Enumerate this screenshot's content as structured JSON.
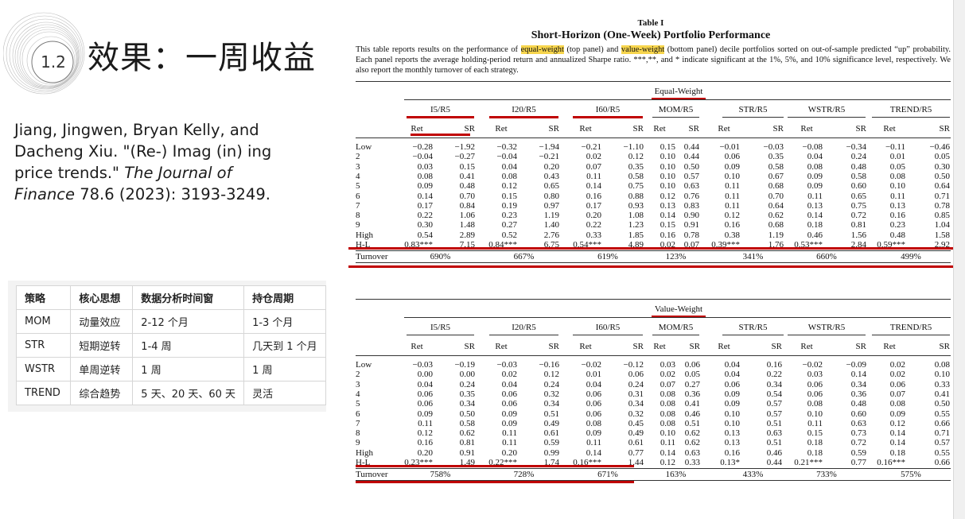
{
  "slide": {
    "number": "1.2",
    "title": "效果：一周收益",
    "citation_authors": "Jiang, Jingwen, Bryan Kelly, and Dacheng Xiu. \"(Re-) Imag (in) ing price trends.\"",
    "citation_journal": "The Journal of Finance",
    "citation_rest": " 78.6 (2023): 3193-3249."
  },
  "strategy_table": {
    "headers": [
      "策略",
      "核心思想",
      "数据分析时间窗",
      "持仓周期"
    ],
    "rows": [
      [
        "MOM",
        "动量效应",
        "2-12 个月",
        "1-3 个月"
      ],
      [
        "STR",
        "短期逆转",
        "1-4 周",
        "几天到 1 个月"
      ],
      [
        "WSTR",
        "单周逆转",
        "1 周",
        "1 周"
      ],
      [
        "TREND",
        "综合趋势",
        "5 天、20 天、60 天",
        "灵活"
      ]
    ]
  },
  "paper": {
    "table_label": "Table I",
    "table_title": "Short-Horizon (One-Week) Portfolio Performance",
    "desc_1": "This table reports results on the performance of ",
    "desc_hl1": "equal-weight",
    "desc_2": " (top panel) and ",
    "desc_hl2": "value-weight",
    "desc_3": " (bottom panel) decile portfolios sorted on out-of-sample predicted “up” probability. Each panel reports the average holding-period return and annualized Sharpe ratio. ***,**, and * indicate significant at the 1%, 5%, and 10% significance level, respectively. We also report the monthly turnover of each strategy.",
    "strategies": [
      "I5/R5",
      "I20/R5",
      "I60/R5",
      "MOM/R5",
      "STR/R5",
      "WSTR/R5",
      "TREND/R5"
    ],
    "sub_headers": [
      "Ret",
      "SR"
    ],
    "row_labels": [
      "Low",
      "2",
      "3",
      "4",
      "5",
      "6",
      "7",
      "8",
      "9",
      "High",
      "H-L"
    ],
    "turnover_label": "Turnover",
    "equal": {
      "title": "Equal-Weight",
      "rows": [
        [
          "−0.28",
          "−1.92",
          "−0.32",
          "−1.94",
          "−0.21",
          "−1.10",
          "0.15",
          "0.44",
          "−0.01",
          "−0.03",
          "−0.08",
          "−0.34",
          "−0.11",
          "−0.46"
        ],
        [
          "−0.04",
          "−0.27",
          "−0.04",
          "−0.21",
          "0.02",
          "0.12",
          "0.10",
          "0.44",
          "0.06",
          "0.35",
          "0.04",
          "0.24",
          "0.01",
          "0.05"
        ],
        [
          "0.03",
          "0.15",
          "0.04",
          "0.20",
          "0.07",
          "0.35",
          "0.10",
          "0.50",
          "0.09",
          "0.58",
          "0.08",
          "0.48",
          "0.05",
          "0.30"
        ],
        [
          "0.08",
          "0.41",
          "0.08",
          "0.43",
          "0.11",
          "0.58",
          "0.10",
          "0.57",
          "0.10",
          "0.67",
          "0.09",
          "0.58",
          "0.08",
          "0.50"
        ],
        [
          "0.09",
          "0.48",
          "0.12",
          "0.65",
          "0.14",
          "0.75",
          "0.10",
          "0.63",
          "0.11",
          "0.68",
          "0.09",
          "0.60",
          "0.10",
          "0.64"
        ],
        [
          "0.14",
          "0.70",
          "0.15",
          "0.80",
          "0.16",
          "0.88",
          "0.12",
          "0.76",
          "0.11",
          "0.70",
          "0.11",
          "0.65",
          "0.11",
          "0.71"
        ],
        [
          "0.17",
          "0.84",
          "0.19",
          "0.97",
          "0.17",
          "0.93",
          "0.13",
          "0.83",
          "0.11",
          "0.64",
          "0.13",
          "0.75",
          "0.13",
          "0.78"
        ],
        [
          "0.22",
          "1.06",
          "0.23",
          "1.19",
          "0.20",
          "1.08",
          "0.14",
          "0.90",
          "0.12",
          "0.62",
          "0.14",
          "0.72",
          "0.16",
          "0.85"
        ],
        [
          "0.30",
          "1.48",
          "0.27",
          "1.40",
          "0.22",
          "1.23",
          "0.15",
          "0.91",
          "0.16",
          "0.68",
          "0.18",
          "0.81",
          "0.23",
          "1.04"
        ],
        [
          "0.54",
          "2.89",
          "0.52",
          "2.76",
          "0.33",
          "1.85",
          "0.16",
          "0.78",
          "0.38",
          "1.19",
          "0.46",
          "1.56",
          "0.48",
          "1.58"
        ],
        [
          "0.83***",
          "7.15",
          "0.84***",
          "6.75",
          "0.54***",
          "4.89",
          "0.02",
          "0.07",
          "0.39***",
          "1.76",
          "0.53***",
          "2.84",
          "0.59***",
          "2.92"
        ]
      ],
      "turnover": [
        "690%",
        "667%",
        "619%",
        "123%",
        "341%",
        "660%",
        "499%"
      ]
    },
    "value": {
      "title": "Value-Weight",
      "rows": [
        [
          "−0.03",
          "−0.19",
          "−0.03",
          "−0.16",
          "−0.02",
          "−0.12",
          "0.03",
          "0.06",
          "0.04",
          "0.16",
          "−0.02",
          "−0.09",
          "0.02",
          "0.08"
        ],
        [
          "0.00",
          "0.00",
          "0.02",
          "0.12",
          "0.01",
          "0.06",
          "0.02",
          "0.05",
          "0.04",
          "0.22",
          "0.03",
          "0.14",
          "0.02",
          "0.10"
        ],
        [
          "0.04",
          "0.24",
          "0.04",
          "0.24",
          "0.04",
          "0.24",
          "0.07",
          "0.27",
          "0.06",
          "0.34",
          "0.06",
          "0.34",
          "0.06",
          "0.33"
        ],
        [
          "0.06",
          "0.35",
          "0.06",
          "0.32",
          "0.06",
          "0.31",
          "0.08",
          "0.36",
          "0.09",
          "0.54",
          "0.06",
          "0.36",
          "0.07",
          "0.41"
        ],
        [
          "0.06",
          "0.34",
          "0.06",
          "0.34",
          "0.06",
          "0.34",
          "0.08",
          "0.41",
          "0.09",
          "0.57",
          "0.08",
          "0.48",
          "0.08",
          "0.50"
        ],
        [
          "0.09",
          "0.50",
          "0.09",
          "0.51",
          "0.06",
          "0.32",
          "0.08",
          "0.46",
          "0.10",
          "0.57",
          "0.10",
          "0.60",
          "0.09",
          "0.55"
        ],
        [
          "0.11",
          "0.58",
          "0.09",
          "0.49",
          "0.08",
          "0.45",
          "0.08",
          "0.51",
          "0.10",
          "0.51",
          "0.11",
          "0.63",
          "0.12",
          "0.66"
        ],
        [
          "0.12",
          "0.62",
          "0.11",
          "0.61",
          "0.09",
          "0.49",
          "0.10",
          "0.62",
          "0.13",
          "0.63",
          "0.15",
          "0.73",
          "0.14",
          "0.71"
        ],
        [
          "0.16",
          "0.81",
          "0.11",
          "0.59",
          "0.11",
          "0.61",
          "0.11",
          "0.62",
          "0.13",
          "0.51",
          "0.18",
          "0.72",
          "0.14",
          "0.57"
        ],
        [
          "0.20",
          "0.91",
          "0.20",
          "0.99",
          "0.14",
          "0.77",
          "0.14",
          "0.63",
          "0.16",
          "0.46",
          "0.18",
          "0.59",
          "0.18",
          "0.55"
        ],
        [
          "0.23***",
          "1.49",
          "0.22***",
          "1.74",
          "0.16***",
          "1.44",
          "0.12",
          "0.33",
          "0.13*",
          "0.44",
          "0.21***",
          "0.77",
          "0.16***",
          "0.66"
        ]
      ],
      "turnover": [
        "758%",
        "728%",
        "671%",
        "163%",
        "433%",
        "733%",
        "575%"
      ]
    }
  },
  "colors": {
    "highlight": "#f7d54d",
    "annotation_red": "#c00000"
  }
}
